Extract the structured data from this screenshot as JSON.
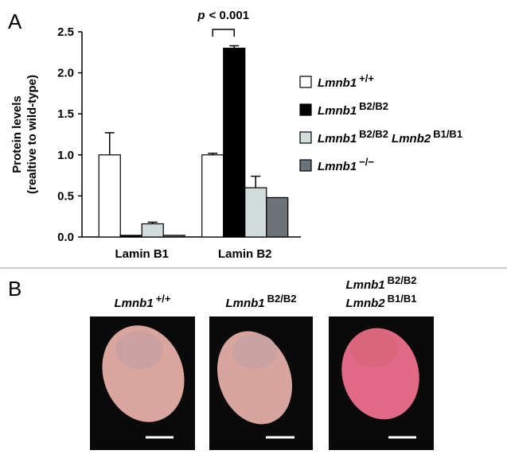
{
  "panel_a": {
    "label": "A"
  },
  "chart_data": {
    "type": "bar",
    "ylabel": [
      "Protein levels",
      "(realtive to wild-type)"
    ],
    "categories": [
      "Lamin B1",
      "Lamin B2"
    ],
    "series": [
      {
        "name": [
          "Lmnb1",
          "+/+"
        ],
        "color": "#ffffff",
        "values": [
          1.0,
          1.0
        ],
        "errors": [
          0.27,
          0.02
        ]
      },
      {
        "name": [
          "Lmnb1",
          "B2/B2"
        ],
        "color": "#000000",
        "values": [
          0.02,
          2.3
        ],
        "errors": [
          0,
          0.03
        ]
      },
      {
        "name": [
          "Lmnb1",
          "B2/B2",
          "Lmnb2",
          "B1/B1"
        ],
        "color": "#d3dcdc",
        "values": [
          0.16,
          0.6
        ],
        "errors": [
          0.02,
          0.14
        ]
      },
      {
        "name": [
          "Lmnb1",
          "−/−"
        ],
        "color": "#6b7378",
        "values": [
          0.02,
          0.48
        ],
        "errors": [
          0,
          0
        ]
      }
    ],
    "ylim": [
      0,
      2.5
    ],
    "yticks": [
      {
        "value": 0,
        "label": "0.0"
      },
      {
        "value": 0.5,
        "label": "0.5"
      },
      {
        "value": 1,
        "label": "1.0"
      },
      {
        "value": 1.5,
        "label": "1.5"
      },
      {
        "value": 2,
        "label": "2.0"
      },
      {
        "value": 2.5,
        "label": "2.5"
      }
    ],
    "annotation": {
      "symbol": "p",
      "text": "< 0.001"
    }
  },
  "panel_b": {
    "label": "B",
    "photos": [
      {
        "label": [
          [
            "Lmnb1",
            "+/+"
          ]
        ]
      },
      {
        "label": [
          [
            "Lmnb1",
            "B2/B2"
          ]
        ]
      },
      {
        "label": [
          [
            "Lmnb1",
            "B2/B2"
          ],
          [
            "Lmnb2",
            "B1/B1"
          ]
        ]
      }
    ]
  }
}
